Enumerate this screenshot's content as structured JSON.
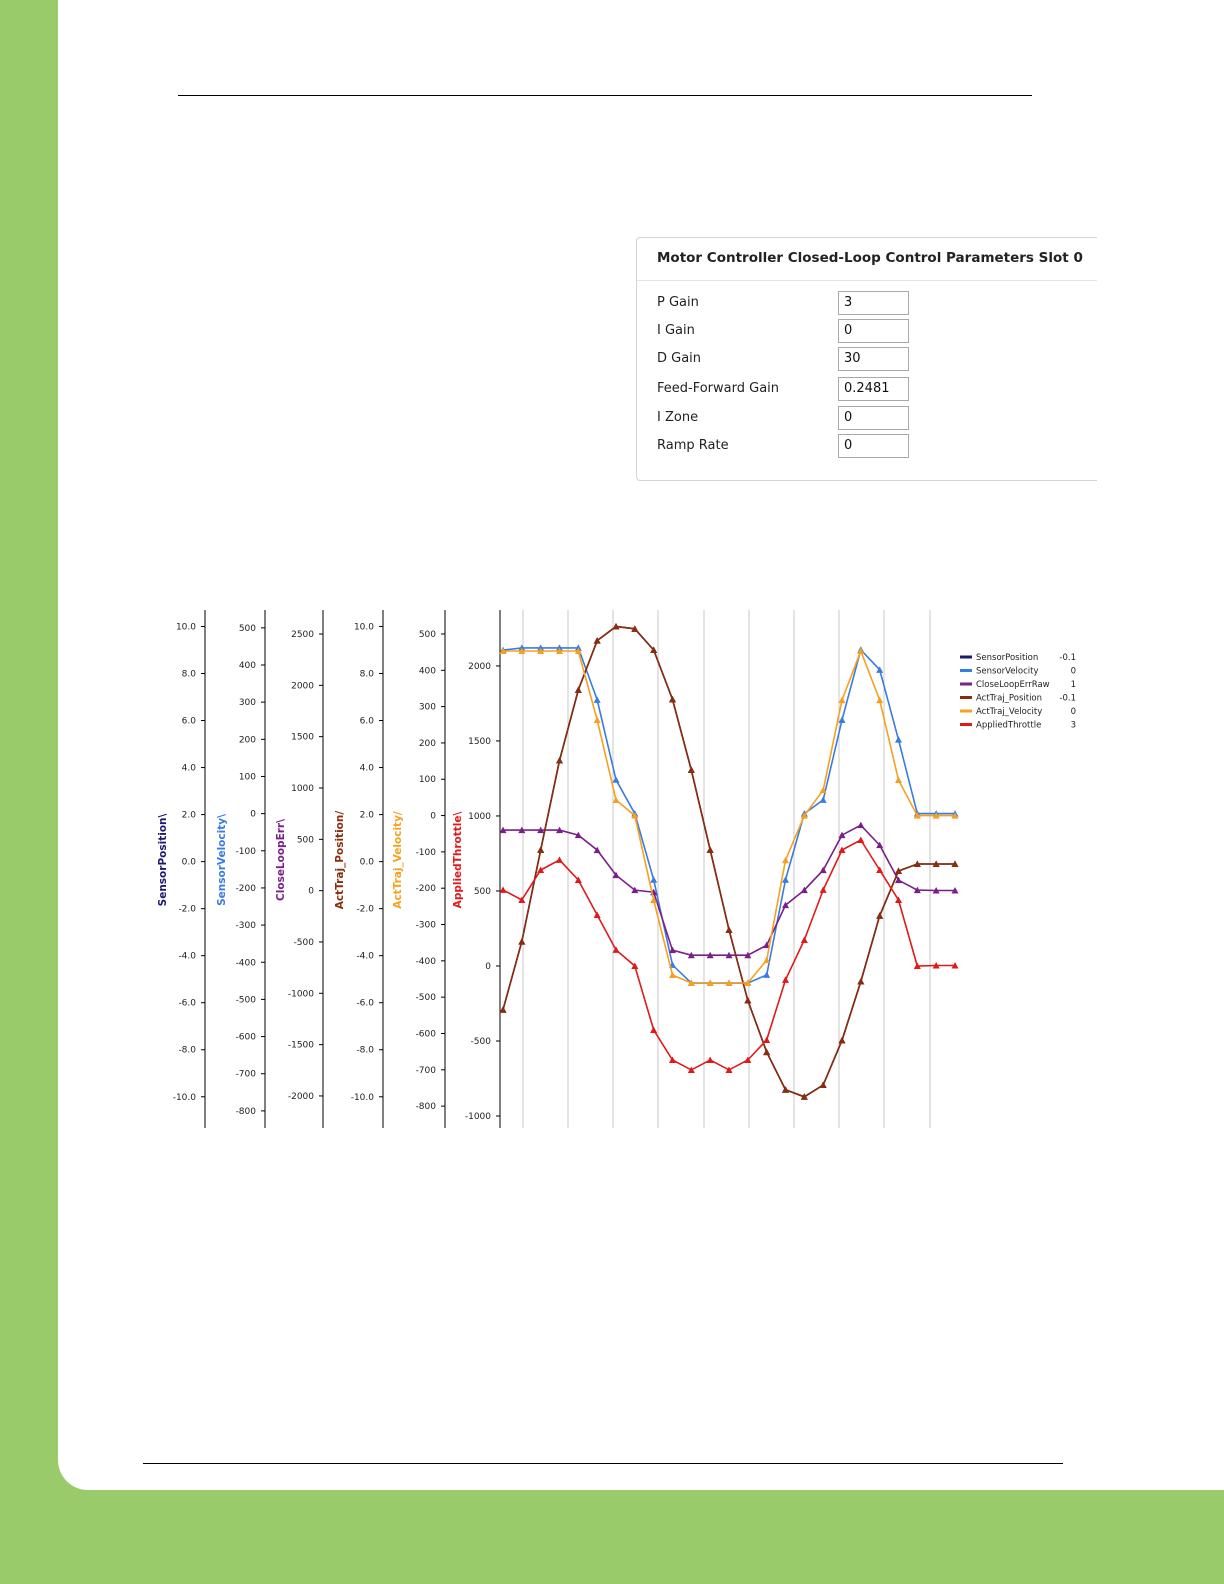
{
  "panel": {
    "title": "Motor Controller Closed-Loop Control Parameters Slot 0",
    "rows": [
      {
        "label": "P Gain",
        "value": "3"
      },
      {
        "label": "I Gain",
        "value": "0"
      },
      {
        "label": "D Gain",
        "value": "30"
      },
      {
        "label": "Feed-Forward Gain",
        "value": "0.2481"
      },
      {
        "label": "I Zone",
        "value": "0"
      },
      {
        "label": "Ramp Rate",
        "value": "0"
      }
    ]
  },
  "chart_data": {
    "type": "line",
    "axes": [
      {
        "label": "SensorPosition\\",
        "color": "#1a1a6e",
        "ylim": [
          -11.2,
          10.7
        ],
        "yticks": [
          {
            "value": 10,
            "label": "10.0"
          },
          {
            "value": 8,
            "label": "8.0"
          },
          {
            "value": 6,
            "label": "6.0"
          },
          {
            "value": 4,
            "label": "4.0"
          },
          {
            "value": 2,
            "label": "2.0"
          },
          {
            "value": 0,
            "label": "0.0"
          },
          {
            "value": -2,
            "label": "-2.0"
          },
          {
            "value": -4,
            "label": "-4.0"
          },
          {
            "value": -6,
            "label": "-6.0"
          },
          {
            "value": -8,
            "label": "-8.0"
          },
          {
            "value": -10,
            "label": "-10.0"
          }
        ]
      },
      {
        "label": "SensorVelocity\\",
        "color": "#3a7be0",
        "ylim": [
          -838,
          548
        ],
        "yticks": [
          500,
          400,
          300,
          200,
          100,
          0,
          -100,
          -200,
          -300,
          -400,
          -500,
          -600,
          -700,
          -800
        ]
      },
      {
        "label": "CloseLoopErr\\",
        "color": "#7a1f8a",
        "ylim": [
          -2283,
          2734
        ],
        "yticks": [
          2500,
          2000,
          1500,
          1000,
          500,
          0,
          -500,
          -1000,
          -1500,
          -2000
        ]
      },
      {
        "label": "ActTraj_Position/",
        "color": "#8b2d0a",
        "ylim": [
          -11.2,
          10.7
        ],
        "yticks": [
          {
            "value": 10,
            "label": "10.0"
          },
          {
            "value": 8,
            "label": "8.0"
          },
          {
            "value": 6,
            "label": "6.0"
          },
          {
            "value": 4,
            "label": "4.0"
          },
          {
            "value": 2,
            "label": "2.0"
          },
          {
            "value": 0,
            "label": "0.0"
          },
          {
            "value": -2,
            "label": "-2.0"
          },
          {
            "value": -4,
            "label": "-4.0"
          },
          {
            "value": -6,
            "label": "-6.0"
          },
          {
            "value": -8,
            "label": "-8.0"
          },
          {
            "value": -10,
            "label": "-10.0"
          }
        ]
      },
      {
        "label": "ActTraj_Velocity/",
        "color": "#f5a020",
        "ylim": [
          -852,
          566
        ],
        "yticks": [
          500,
          400,
          300,
          200,
          100,
          0,
          -100,
          -200,
          -300,
          -400,
          -500,
          -600,
          -700,
          -800
        ]
      },
      {
        "label": "AppliedThrottle\\",
        "color": "#e01a1a",
        "ylim": [
          -1060,
          2373
        ],
        "yticks": [
          2000,
          1500,
          1000,
          500,
          0,
          -500,
          -1000
        ]
      }
    ],
    "series": [
      {
        "name": "SensorPosition",
        "color": "#1a1a6e",
        "axis": 0,
        "legend_value": -0.1,
        "values": [
          -6.3,
          -3.4,
          0.5,
          4.3,
          7.3,
          9.4,
          10.0,
          9.9,
          9.0,
          6.9,
          3.9,
          0.5,
          -2.9,
          -5.9,
          -8.1,
          -9.7,
          -10.0,
          -9.5,
          -7.6,
          -5.1,
          -2.3,
          -0.4,
          -0.1,
          -0.1,
          -0.1
        ]
      },
      {
        "name": "SensorVelocity",
        "color": "#3a7be0",
        "axis": 1,
        "legend_value": 0,
        "values": [
          440,
          446,
          446,
          446,
          446,
          306,
          91,
          0,
          -178,
          -407,
          -456,
          -456,
          -456,
          -456,
          -434,
          -178,
          0,
          37,
          252,
          441,
          387,
          199,
          0,
          0,
          0
        ]
      },
      {
        "name": "CloseLoopErrRaw",
        "color": "#7a1f8a",
        "axis": 2,
        "legend_value": 1,
        "values": [
          590,
          590,
          590,
          590,
          541,
          395,
          151,
          5,
          -15,
          -580,
          -629,
          -629,
          -629,
          -629,
          -531,
          -141,
          5,
          200,
          541,
          638,
          443,
          102,
          5,
          1,
          1
        ]
      },
      {
        "name": "ActTraj_Position",
        "color": "#8b2d0a",
        "axis": 3,
        "legend_value": -0.1,
        "values": [
          -6.3,
          -3.4,
          0.5,
          4.3,
          7.3,
          9.4,
          10.0,
          9.9,
          9.0,
          6.9,
          3.9,
          0.5,
          -2.9,
          -5.9,
          -8.1,
          -9.7,
          -10.0,
          -9.5,
          -7.6,
          -5.1,
          -2.3,
          -0.4,
          -0.1,
          -0.1,
          -0.1
        ]
      },
      {
        "name": "ActTraj_Velocity",
        "color": "#f5a020",
        "axis": 4,
        "legend_value": 0,
        "values": [
          453,
          453,
          453,
          453,
          453,
          263,
          43,
          0,
          -233,
          -439,
          -461,
          -461,
          -461,
          -461,
          -398,
          -123,
          0,
          70,
          318,
          453,
          318,
          98,
          0,
          0,
          0
        ]
      },
      {
        "name": "AppliedThrottle",
        "color": "#e01a1a",
        "axis": 5,
        "legend_value": 3,
        "values": [
          507,
          440,
          640,
          707,
          573,
          340,
          107,
          0,
          -427,
          -627,
          -693,
          -627,
          -693,
          -627,
          -493,
          -93,
          173,
          507,
          773,
          840,
          640,
          440,
          0,
          3,
          3
        ]
      }
    ]
  }
}
